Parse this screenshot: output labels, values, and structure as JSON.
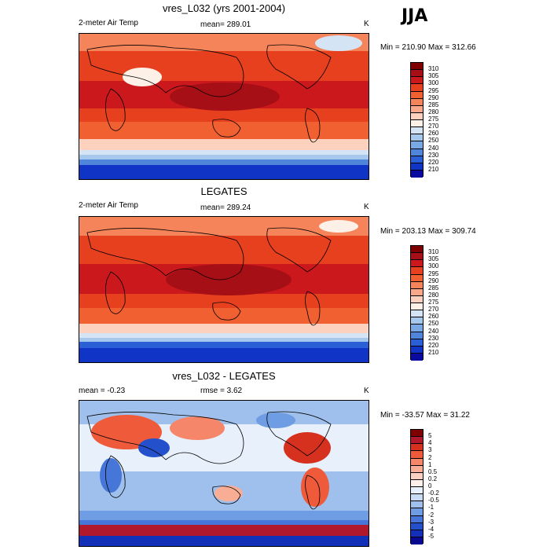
{
  "season": "JJA",
  "panels": [
    {
      "title": "vres_L032 (yrs 2001-2004)",
      "left_label": "2-meter Air Temp",
      "center_label": "mean= 289.01",
      "units": "K",
      "minmax": "Min = 210.90 Max = 312.66",
      "colorbar": {
        "labels": [
          "310",
          "305",
          "300",
          "295",
          "290",
          "285",
          "280",
          "275",
          "270",
          "260",
          "250",
          "240",
          "230",
          "220",
          "210"
        ],
        "colors": [
          "#7f0000",
          "#a50f15",
          "#cb181d",
          "#e6401f",
          "#f06030",
          "#f5845a",
          "#f9a98a",
          "#fcd2be",
          "#fdf0e6",
          "#d4e4f5",
          "#a6c8ec",
          "#78a9e4",
          "#4f86dc",
          "#2a5fd6",
          "#1034c6",
          "#0a0aa0"
        ]
      }
    },
    {
      "title": "LEGATES",
      "left_label": "2-meter Air Temp",
      "center_label": "mean= 289.24",
      "units": "K",
      "minmax": "Min = 203.13 Max = 309.74",
      "colorbar": {
        "labels": [
          "310",
          "305",
          "300",
          "295",
          "290",
          "285",
          "280",
          "275",
          "270",
          "260",
          "250",
          "240",
          "230",
          "220",
          "210"
        ],
        "colors": [
          "#7f0000",
          "#a50f15",
          "#cb181d",
          "#e6401f",
          "#f06030",
          "#f5845a",
          "#f9a98a",
          "#fcd2be",
          "#fdf0e6",
          "#d4e4f5",
          "#a6c8ec",
          "#78a9e4",
          "#4f86dc",
          "#2a5fd6",
          "#1034c6",
          "#0a0aa0"
        ]
      }
    },
    {
      "title": "vres_L032 - LEGATES",
      "left_label": "mean =  -0.23",
      "center_label": "rmse =   3.62",
      "units": "K",
      "minmax": "Min = -33.57 Max =  31.22",
      "colorbar": {
        "labels": [
          "5",
          "4",
          "3",
          "2",
          "1",
          "0.5",
          "0.2",
          "0",
          "-0.2",
          "-0.5",
          "-1",
          "-2",
          "-3",
          "-4",
          "-5"
        ],
        "colors": [
          "#7f0000",
          "#b2182b",
          "#d6301f",
          "#ef5a3a",
          "#f6866a",
          "#f9ad95",
          "#fcd0c0",
          "#fff0ea",
          "#e8f0fb",
          "#c8dbf3",
          "#9fc0ec",
          "#6f9de3",
          "#4677d8",
          "#2450cc",
          "#1230b8",
          "#080890"
        ]
      }
    }
  ]
}
